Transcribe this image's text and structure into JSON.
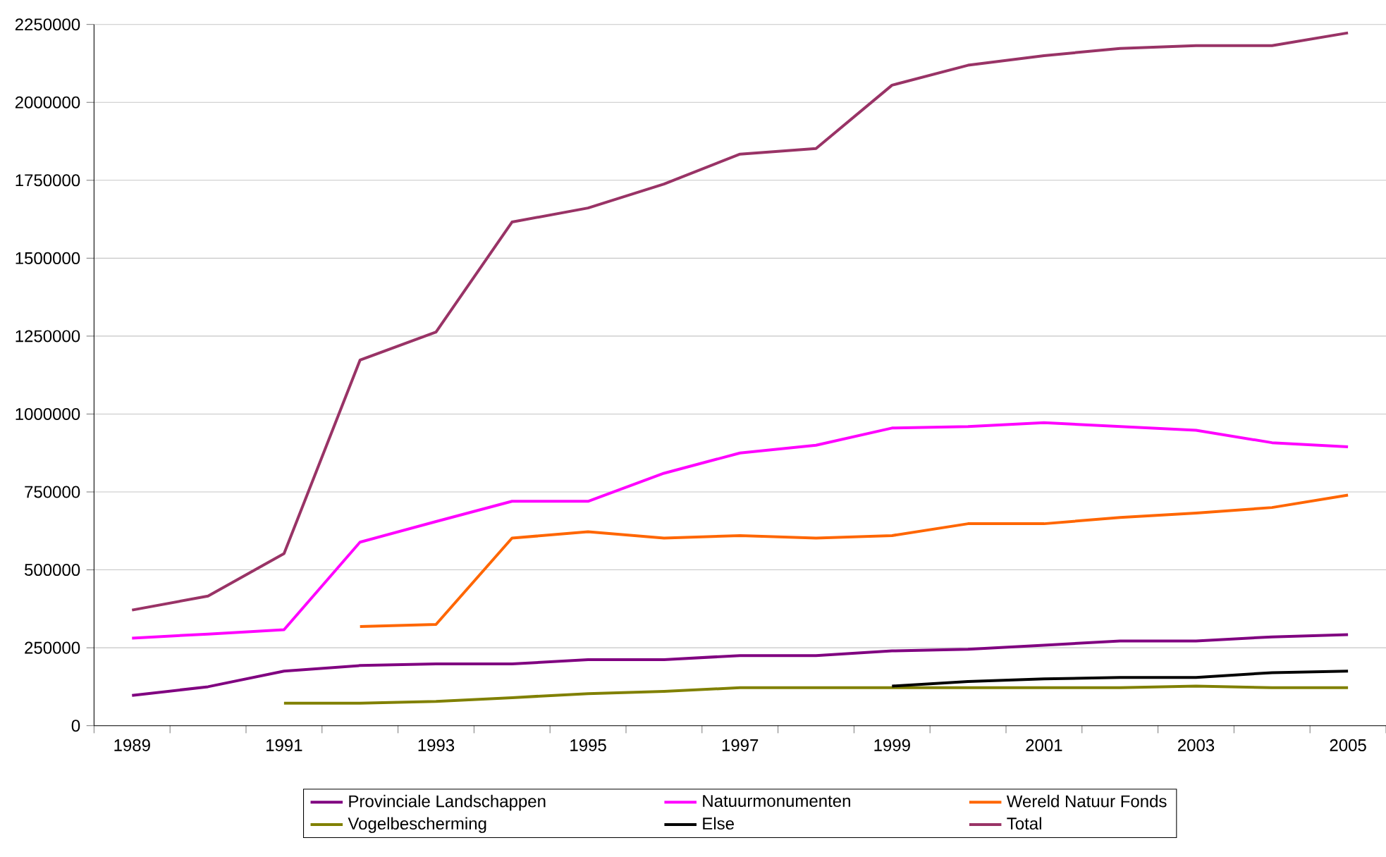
{
  "chart_data": {
    "type": "line",
    "categories": [
      "1989",
      null,
      "1991",
      null,
      "1993",
      null,
      "1995",
      null,
      "1997",
      null,
      "1999",
      null,
      "2001",
      null,
      "2003",
      null,
      "2005"
    ],
    "series": [
      {
        "name": "Provinciale Landschappen",
        "color": "#800080",
        "values": [
          97000,
          125000,
          175000,
          193000,
          198000,
          198000,
          212000,
          212000,
          225000,
          225000,
          240000,
          245000,
          258000,
          272000,
          272000,
          285000,
          292000
        ]
      },
      {
        "name": "Natuurmonumenten",
        "color": "#ff00ff",
        "values": [
          281000,
          294000,
          308000,
          589000,
          655000,
          720000,
          720000,
          810000,
          875000,
          900000,
          955000,
          960000,
          972000,
          960000,
          948000,
          908000,
          895000
        ]
      },
      {
        "name": "Wereld Natuur Fonds",
        "color": "#ff6600",
        "values": [
          null,
          null,
          null,
          318000,
          325000,
          602000,
          622000,
          602000,
          610000,
          602000,
          610000,
          648000,
          648000,
          668000,
          682000,
          700000,
          740000
        ]
      },
      {
        "name": "Vogelbescherming",
        "color": "#808000",
        "values": [
          null,
          null,
          72000,
          72000,
          78000,
          90000,
          103000,
          110000,
          122000,
          122000,
          122000,
          122000,
          122000,
          122000,
          127000,
          122000,
          122000
        ]
      },
      {
        "name": "Else",
        "color": "#000000",
        "values": [
          null,
          null,
          null,
          null,
          null,
          null,
          null,
          null,
          null,
          null,
          127000,
          142000,
          150000,
          155000,
          155000,
          170000,
          175000
        ]
      },
      {
        "name": "Total",
        "color": "#993366",
        "values": [
          371000,
          416000,
          552000,
          1173000,
          1263000,
          1616000,
          1661000,
          1738000,
          1834000,
          1852000,
          2055000,
          2119000,
          2150000,
          2173000,
          2182000,
          2182000,
          2223000
        ]
      }
    ],
    "ylim": [
      0,
      2250000
    ],
    "yticks": [
      0,
      250000,
      500000,
      750000,
      1000000,
      1250000,
      1500000,
      1750000,
      2000000,
      2250000
    ],
    "grid": "y",
    "legend": "bottom",
    "marker": "none",
    "line_style": "solid"
  }
}
